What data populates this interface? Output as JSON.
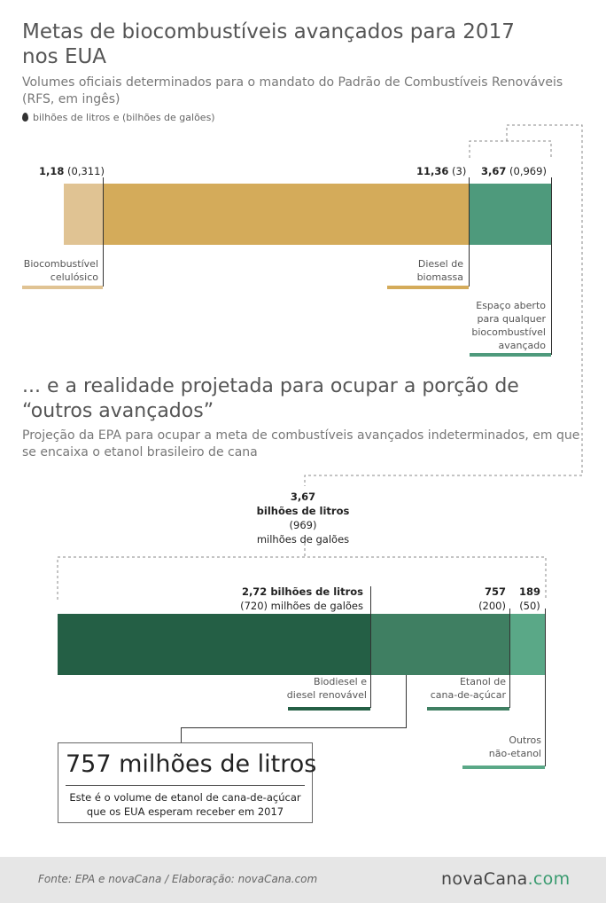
{
  "title": "Metas de biocombustíveis avançados para 2017 nos EUA",
  "subtitle": "Volumes oficiais determinados para o mandato do Padrão de Combustíveis Renováveis (RFS, em ingês)",
  "unit_note": "bilhões de litros e (bilhões de galões)",
  "colors": {
    "cellulosic": "#e0c393",
    "biomass_diesel": "#d4ab5a",
    "open_space": "#4e9a7c",
    "biodiesel_dark": "#245f45",
    "sugarcane": "#3f7f62",
    "other": "#5aa887"
  },
  "chart1": {
    "cellulosic_value": "1,18",
    "cellulosic_gal": "(0,311)",
    "cellulosic_label_1": "Biocombustível",
    "cellulosic_label_2": "celulósico",
    "biomass_value": "11,36",
    "biomass_gal": "(3)",
    "biomass_label_1": "Diesel de",
    "biomass_label_2": "biomassa",
    "open_value": "3,67",
    "open_gal": "(0,969)",
    "open_label_1": "Espaço aberto",
    "open_label_2": "para qualquer",
    "open_label_3": "biocombustível",
    "open_label_4": "avançado"
  },
  "section2_title": "... e a realidade projetada para ocupar a porção de “outros avançados”",
  "section2_subtitle": "Projeção da EPA para ocupar a meta de combustíveis avançados indeterminados, em que se encaixa o etanol brasileiro de cana",
  "total_note": {
    "line1": "3,67",
    "line2": "bilhões de litros",
    "line3": "(969)",
    "line4": "milhões de galões"
  },
  "chart2": {
    "biodiesel_value": "2,72 bilhões de litros",
    "biodiesel_gal": "(720) milhões de galões",
    "biodiesel_label_1": "Biodiesel e",
    "biodiesel_label_2": "diesel renovável",
    "sugarcane_value": "757",
    "sugarcane_gal": "(200)",
    "sugarcane_label_1": "Etanol de",
    "sugarcane_label_2": "cana-de-açúcar",
    "other_value": "189",
    "other_gal": "(50)",
    "other_label_1": "Outros",
    "other_label_2": "não-etanol"
  },
  "callout": {
    "big": "757 milhões de litros",
    "small_1": "Este é o volume de etanol de cana-de-açúcar",
    "small_2": "que os EUA esperam receber em 2017"
  },
  "footer": {
    "source": "Fonte:  EPA e novaCana / Elaboração: novaCana.com",
    "logo_main": "novaCana",
    "logo_dot": ".com"
  },
  "chart_data": [
    {
      "type": "bar",
      "stacked": true,
      "orientation": "horizontal",
      "title": "Metas de biocombustíveis avançados para 2017 nos EUA",
      "unit": "bilhões de litros",
      "series": [
        {
          "name": "Biocombustível celulósico",
          "value": 1.18,
          "gallons": 0.311
        },
        {
          "name": "Diesel de biomassa",
          "value": 11.36,
          "gallons": 3
        },
        {
          "name": "Espaço aberto para qualquer biocombustível avançado",
          "value": 3.67,
          "gallons": 0.969
        }
      ]
    },
    {
      "type": "bar",
      "stacked": true,
      "orientation": "horizontal",
      "title": "... e a realidade projetada para ocupar a porção de “outros avançados”",
      "unit": "milhões de litros",
      "series": [
        {
          "name": "Biodiesel e diesel renovável",
          "value": 2720,
          "gallons": 720
        },
        {
          "name": "Etanol de cana-de-açúcar",
          "value": 757,
          "gallons": 200
        },
        {
          "name": "Outros não-etanol",
          "value": 189,
          "gallons": 50
        }
      ]
    }
  ]
}
